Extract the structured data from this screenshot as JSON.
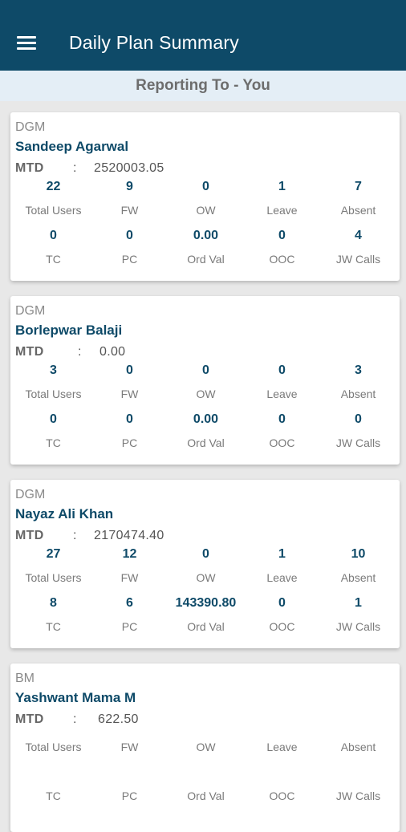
{
  "header": {
    "title": "Daily Plan Summary",
    "menu_icon": "hamburger-menu-icon"
  },
  "subheader": {
    "text": "Reporting To - You"
  },
  "labels": {
    "mtd": "MTD",
    "colon": ":",
    "row1": [
      "Total Users",
      "FW",
      "OW",
      "Leave",
      "Absent"
    ],
    "row2": [
      "TC",
      "PC",
      "Ord Val",
      "OOC",
      "JW Calls"
    ]
  },
  "cards": [
    {
      "role": "DGM",
      "name": "Sandeep Agarwal",
      "mtd": "2520003.05",
      "row1": [
        "22",
        "9",
        "0",
        "1",
        "7"
      ],
      "row2": [
        "0",
        "0",
        "0.00",
        "0",
        "4"
      ]
    },
    {
      "role": "DGM",
      "name": "Borlepwar Balaji",
      "mtd": "0.00",
      "row1": [
        "3",
        "0",
        "0",
        "0",
        "3"
      ],
      "row2": [
        "0",
        "0",
        "0.00",
        "0",
        "0"
      ]
    },
    {
      "role": "DGM",
      "name": "Nayaz Ali Khan",
      "mtd": "2170474.40",
      "row1": [
        "27",
        "12",
        "0",
        "1",
        "10"
      ],
      "row2": [
        "8",
        "6",
        "143390.80",
        "0",
        "1"
      ]
    },
    {
      "role": "BM",
      "name": "Yashwant Mama M",
      "mtd": "622.50",
      "row1": [
        "",
        "",
        "",
        "",
        ""
      ],
      "row2": [
        "",
        "",
        "",
        "",
        ""
      ]
    }
  ]
}
